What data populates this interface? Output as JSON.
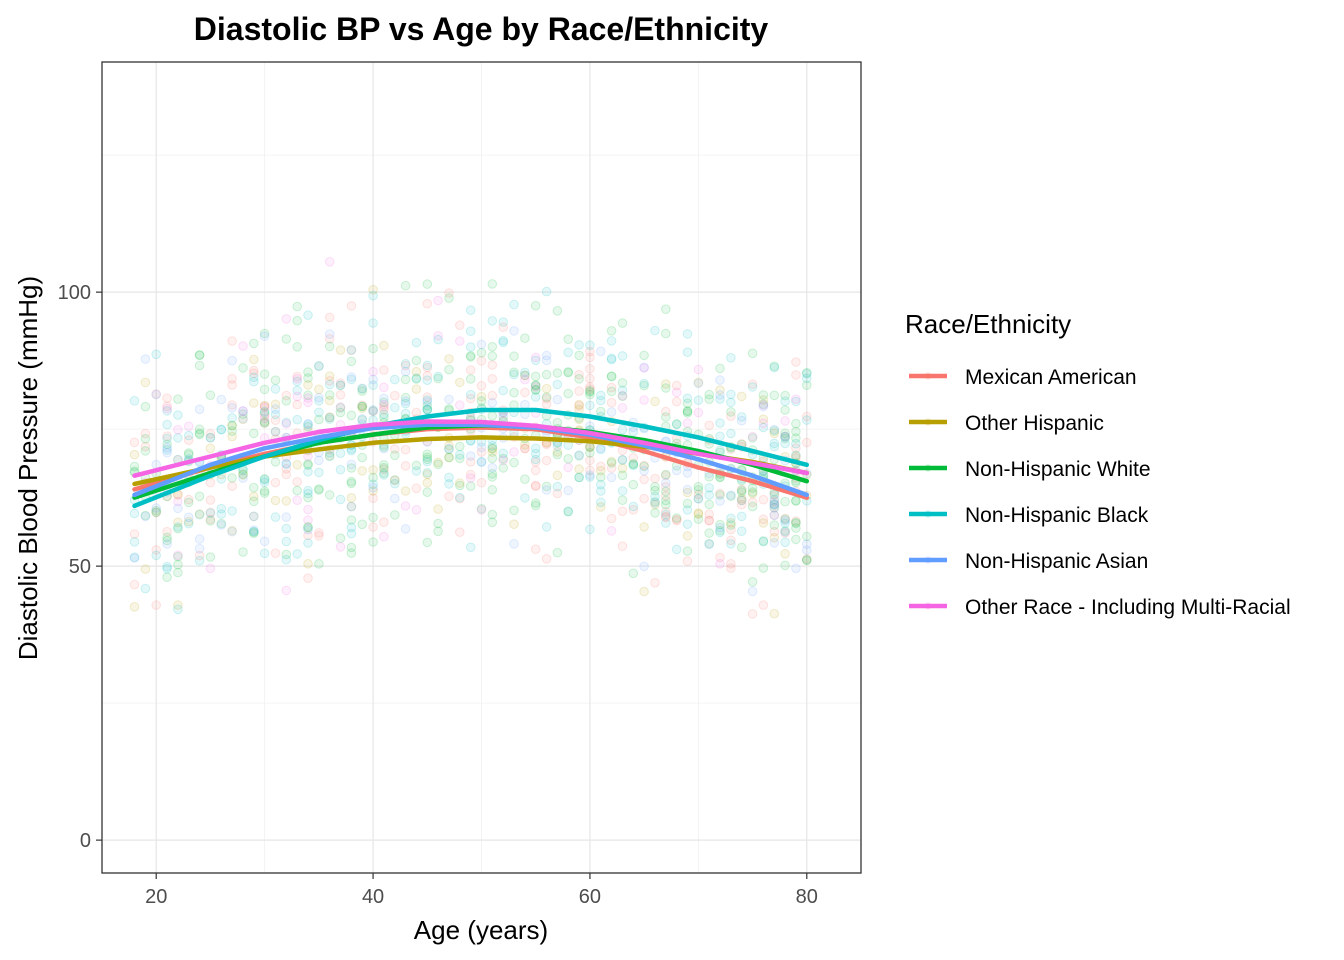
{
  "chart_data": {
    "type": "scatter",
    "title": "Diastolic BP vs Age by Race/Ethnicity",
    "xlabel": "Age (years)",
    "ylabel": "Diastolic Blood Pressure (mmHg)",
    "xlim": [
      15,
      85
    ],
    "ylim": [
      -6,
      142
    ],
    "x_ticks": [
      20,
      40,
      60,
      80
    ],
    "y_ticks": [
      0,
      50,
      100
    ],
    "grid": true,
    "legend": {
      "title": "Race/Ethnicity",
      "position": "right"
    },
    "series": [
      {
        "name": "Mexican American",
        "color": "#F8766D",
        "smooth": [
          [
            18,
            64
          ],
          [
            25,
            68
          ],
          [
            30,
            70.5
          ],
          [
            35,
            72.5
          ],
          [
            40,
            74
          ],
          [
            45,
            75
          ],
          [
            50,
            75.3
          ],
          [
            55,
            75
          ],
          [
            60,
            73.5
          ],
          [
            65,
            71
          ],
          [
            70,
            68
          ],
          [
            75,
            65.5
          ],
          [
            80,
            62.5
          ]
        ]
      },
      {
        "name": "Other Hispanic",
        "color": "#B79F00",
        "smooth": [
          [
            18,
            65
          ],
          [
            25,
            68
          ],
          [
            30,
            70
          ],
          [
            35,
            71.3
          ],
          [
            40,
            72.5
          ],
          [
            45,
            73.2
          ],
          [
            50,
            73.5
          ],
          [
            55,
            73.3
          ],
          [
            60,
            72.8
          ],
          [
            65,
            71.8
          ],
          [
            70,
            70.5
          ],
          [
            75,
            69
          ],
          [
            80,
            67
          ]
        ]
      },
      {
        "name": "Non-Hispanic White",
        "color": "#00BA38",
        "smooth": [
          [
            18,
            62.5
          ],
          [
            25,
            67
          ],
          [
            30,
            70
          ],
          [
            35,
            72.5
          ],
          [
            40,
            74
          ],
          [
            45,
            75.3
          ],
          [
            50,
            75.7
          ],
          [
            55,
            75.5
          ],
          [
            60,
            74.5
          ],
          [
            65,
            73
          ],
          [
            70,
            71
          ],
          [
            75,
            68.5
          ],
          [
            80,
            65.5
          ]
        ]
      },
      {
        "name": "Non-Hispanic Black",
        "color": "#00BFC4",
        "smooth": [
          [
            18,
            61
          ],
          [
            25,
            66.5
          ],
          [
            30,
            70
          ],
          [
            35,
            73
          ],
          [
            40,
            75.5
          ],
          [
            45,
            77.3
          ],
          [
            50,
            78.5
          ],
          [
            55,
            78.5
          ],
          [
            60,
            77.3
          ],
          [
            65,
            75.5
          ],
          [
            70,
            73.5
          ],
          [
            75,
            71
          ],
          [
            80,
            68.5
          ]
        ]
      },
      {
        "name": "Non-Hispanic Asian",
        "color": "#619CFF",
        "smooth": [
          [
            18,
            63
          ],
          [
            25,
            68.5
          ],
          [
            30,
            71.5
          ],
          [
            35,
            73.5
          ],
          [
            40,
            75.2
          ],
          [
            45,
            75.8
          ],
          [
            50,
            75.8
          ],
          [
            55,
            75.3
          ],
          [
            60,
            74
          ],
          [
            65,
            72
          ],
          [
            70,
            69.5
          ],
          [
            75,
            66.5
          ],
          [
            80,
            63
          ]
        ]
      },
      {
        "name": "Other Race - Including Multi-Racial",
        "color": "#F564E3",
        "smooth": [
          [
            18,
            66.5
          ],
          [
            25,
            70
          ],
          [
            30,
            72.5
          ],
          [
            35,
            74.5
          ],
          [
            40,
            75.8
          ],
          [
            45,
            76.4
          ],
          [
            50,
            76.3
          ],
          [
            55,
            75.6
          ],
          [
            60,
            74.3
          ],
          [
            65,
            72.5
          ],
          [
            70,
            70.5
          ],
          [
            75,
            68.8
          ],
          [
            80,
            67
          ]
        ]
      }
    ]
  }
}
